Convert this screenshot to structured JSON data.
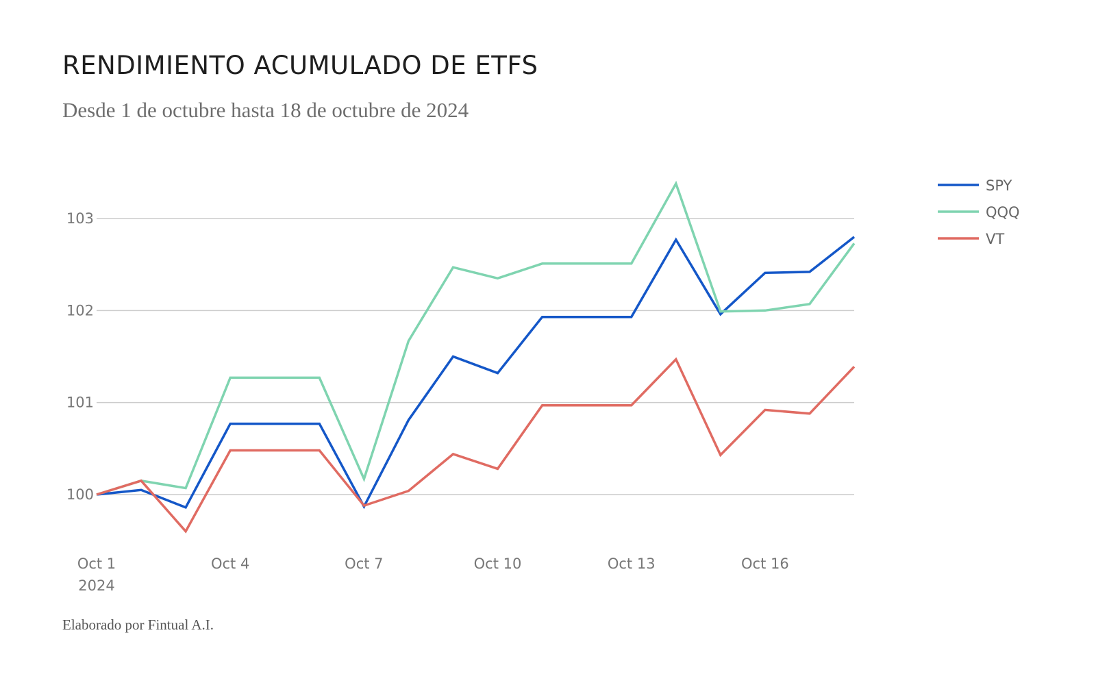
{
  "title": "RENDIMIENTO ACUMULADO DE ETFS",
  "subtitle": "Desde 1 de octubre hasta 18 de octubre de 2024",
  "footer": "Elaborado por Fintual A.I.",
  "chart_data": {
    "type": "line",
    "title": "RENDIMIENTO ACUMULADO DE ETFS",
    "subtitle": "Desde 1 de octubre hasta 18 de octubre de 2024",
    "x": [
      "2024-10-01",
      "2024-10-02",
      "2024-10-03",
      "2024-10-04",
      "2024-10-05",
      "2024-10-06",
      "2024-10-07",
      "2024-10-08",
      "2024-10-09",
      "2024-10-10",
      "2024-10-11",
      "2024-10-12",
      "2024-10-13",
      "2024-10-14",
      "2024-10-15",
      "2024-10-16",
      "2024-10-17",
      "2024-10-18"
    ],
    "x_ticks": [
      {
        "x": "2024-10-01",
        "label": "Oct 1",
        "sublabel": "2024"
      },
      {
        "x": "2024-10-04",
        "label": "Oct 4"
      },
      {
        "x": "2024-10-07",
        "label": "Oct 7"
      },
      {
        "x": "2024-10-10",
        "label": "Oct 10"
      },
      {
        "x": "2024-10-13",
        "label": "Oct 13"
      },
      {
        "x": "2024-10-16",
        "label": "Oct 16"
      }
    ],
    "y_ticks": [
      100,
      101,
      102,
      103
    ],
    "ylim": [
      99.5,
      103.5
    ],
    "grid": true,
    "legend_position": "top-right",
    "series": [
      {
        "name": "SPY",
        "color": "#1457c8",
        "values": [
          100.0,
          100.05,
          99.86,
          100.77,
          100.77,
          100.77,
          99.87,
          100.81,
          101.5,
          101.32,
          101.93,
          101.93,
          101.93,
          102.77,
          101.96,
          102.41,
          102.42,
          102.8
        ]
      },
      {
        "name": "QQQ",
        "color": "#7fd4b0",
        "values": [
          100.0,
          100.15,
          100.07,
          101.27,
          101.27,
          101.27,
          100.17,
          101.67,
          102.47,
          102.35,
          102.51,
          102.51,
          102.51,
          103.38,
          101.99,
          102.0,
          102.07,
          102.73
        ]
      },
      {
        "name": "VT",
        "color": "#e06b62",
        "values": [
          100.0,
          100.15,
          99.6,
          100.48,
          100.48,
          100.48,
          99.88,
          100.04,
          100.44,
          100.28,
          100.97,
          100.97,
          100.97,
          101.47,
          100.43,
          100.92,
          100.88,
          101.39
        ]
      }
    ]
  }
}
